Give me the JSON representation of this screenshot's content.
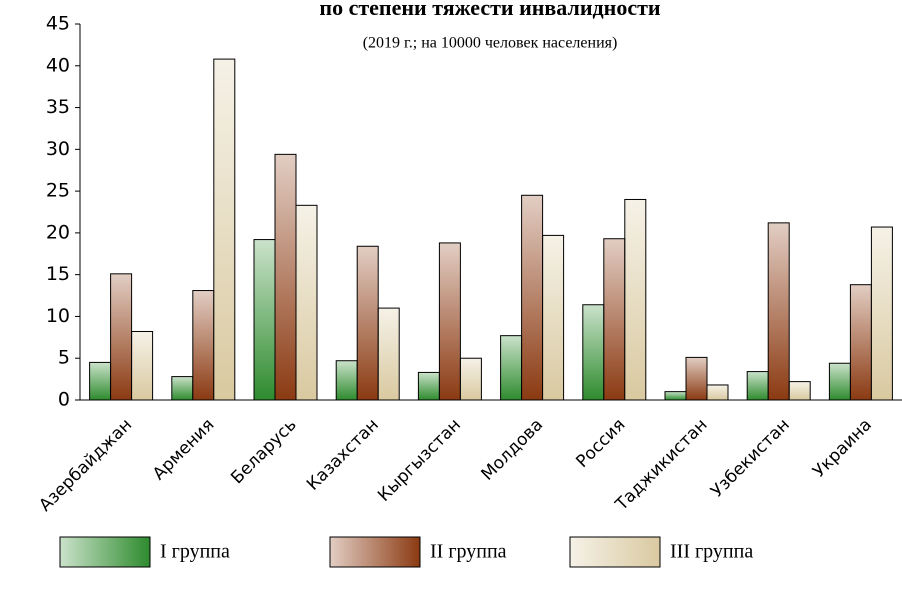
{
  "chart_data": {
    "type": "bar",
    "title": "по степени тяжести инвалидности",
    "subtitle": "(2019 г.; на 10000 человек населения)",
    "categories": [
      "Азербайджан",
      "Армения",
      "Беларусь",
      "Казахстан",
      "Кыргызстан",
      "Молдова",
      "Россия",
      "Таджикистан",
      "Узбекистан",
      "Украина"
    ],
    "series": [
      {
        "name": "I группа",
        "color": "#2e8b2e",
        "values": [
          4.5,
          2.8,
          19.2,
          4.7,
          3.3,
          7.7,
          11.4,
          1.0,
          3.4,
          4.4
        ]
      },
      {
        "name": "II группа",
        "color": "#8b3a12",
        "values": [
          15.1,
          13.1,
          29.4,
          18.4,
          18.8,
          24.5,
          19.3,
          5.1,
          21.2,
          13.8
        ]
      },
      {
        "name": "III  группа",
        "color": "#d9c9a0",
        "values": [
          8.2,
          40.8,
          23.3,
          11.0,
          5.0,
          19.7,
          24.0,
          1.8,
          2.2,
          20.7
        ]
      }
    ],
    "ylim": [
      0,
      45
    ],
    "yticks": [
      0,
      5,
      10,
      15,
      20,
      25,
      30,
      35,
      40,
      45
    ],
    "legend": "bottom"
  }
}
